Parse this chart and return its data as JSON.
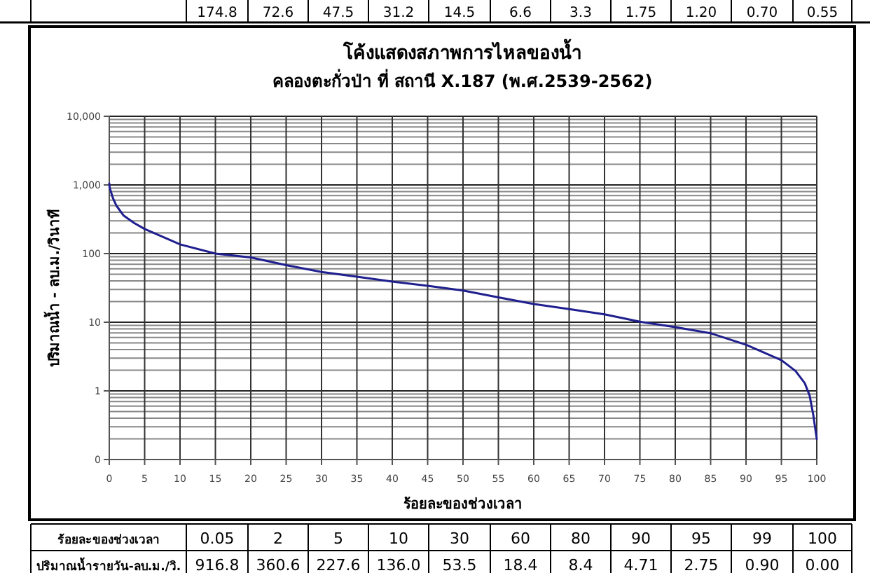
{
  "chart_data": {
    "type": "line",
    "title": "โค้งแสดงสภาพการไหลของน้ำ",
    "subtitle": "คลองตะกั่วป่า ที่ สถานี X.187  (พ.ศ.2539-2562)",
    "xlabel": "ร้อยละของช่วงเวลา",
    "ylabel": "ปริมาณน้ำ - ลบ.ม./วินาที",
    "x": [
      0,
      0.05,
      0.5,
      1,
      2,
      3.5,
      5,
      10,
      15,
      20,
      25,
      30,
      35,
      40,
      45,
      50,
      55,
      60,
      65,
      70,
      75,
      80,
      85,
      90,
      95,
      97,
      98.3,
      99,
      99.5,
      100
    ],
    "series": [
      {
        "color": "#1f1f8f",
        "values": [
          1050,
          917,
          650,
          500,
          360,
          280,
          228,
          136,
          100,
          88,
          68,
          54,
          46,
          39,
          34,
          29,
          23,
          18.4,
          15.5,
          13,
          10.2,
          8.5,
          6.9,
          4.7,
          2.8,
          1.95,
          1.3,
          0.85,
          0.45,
          0.2
        ]
      }
    ],
    "xlim": [
      0,
      100
    ],
    "xticks": [
      0,
      5,
      10,
      15,
      20,
      25,
      30,
      35,
      40,
      45,
      50,
      55,
      60,
      65,
      70,
      75,
      80,
      85,
      90,
      95,
      100
    ],
    "ylim": [
      0.1,
      10000
    ],
    "yticks": [
      {
        "value": 0.1,
        "label": "0"
      },
      1,
      10,
      100,
      {
        "value": 1000,
        "label": "1,000"
      },
      {
        "value": 10000,
        "label": "10,000"
      }
    ],
    "log": true,
    "grid": true,
    "annotations": [
      "174.8",
      "72.6",
      "47.5",
      "31.2",
      "14.5",
      "6.6",
      "3.3",
      "1.75",
      "1.20",
      "0.70",
      "0.55",
      "ร้อยละของช่วงเวลา",
      "0.05",
      "2",
      "5",
      "10",
      "30",
      "60",
      "80",
      "90",
      "95",
      "99",
      "100",
      "ปริมาณน้ำรายวัน-ลบ.ม./วิ.",
      "916.8",
      "360.6",
      "227.6",
      "136.0",
      "53.5",
      "18.4",
      "8.4",
      "4.71",
      "2.75",
      "0.90",
      "0.00"
    ]
  }
}
